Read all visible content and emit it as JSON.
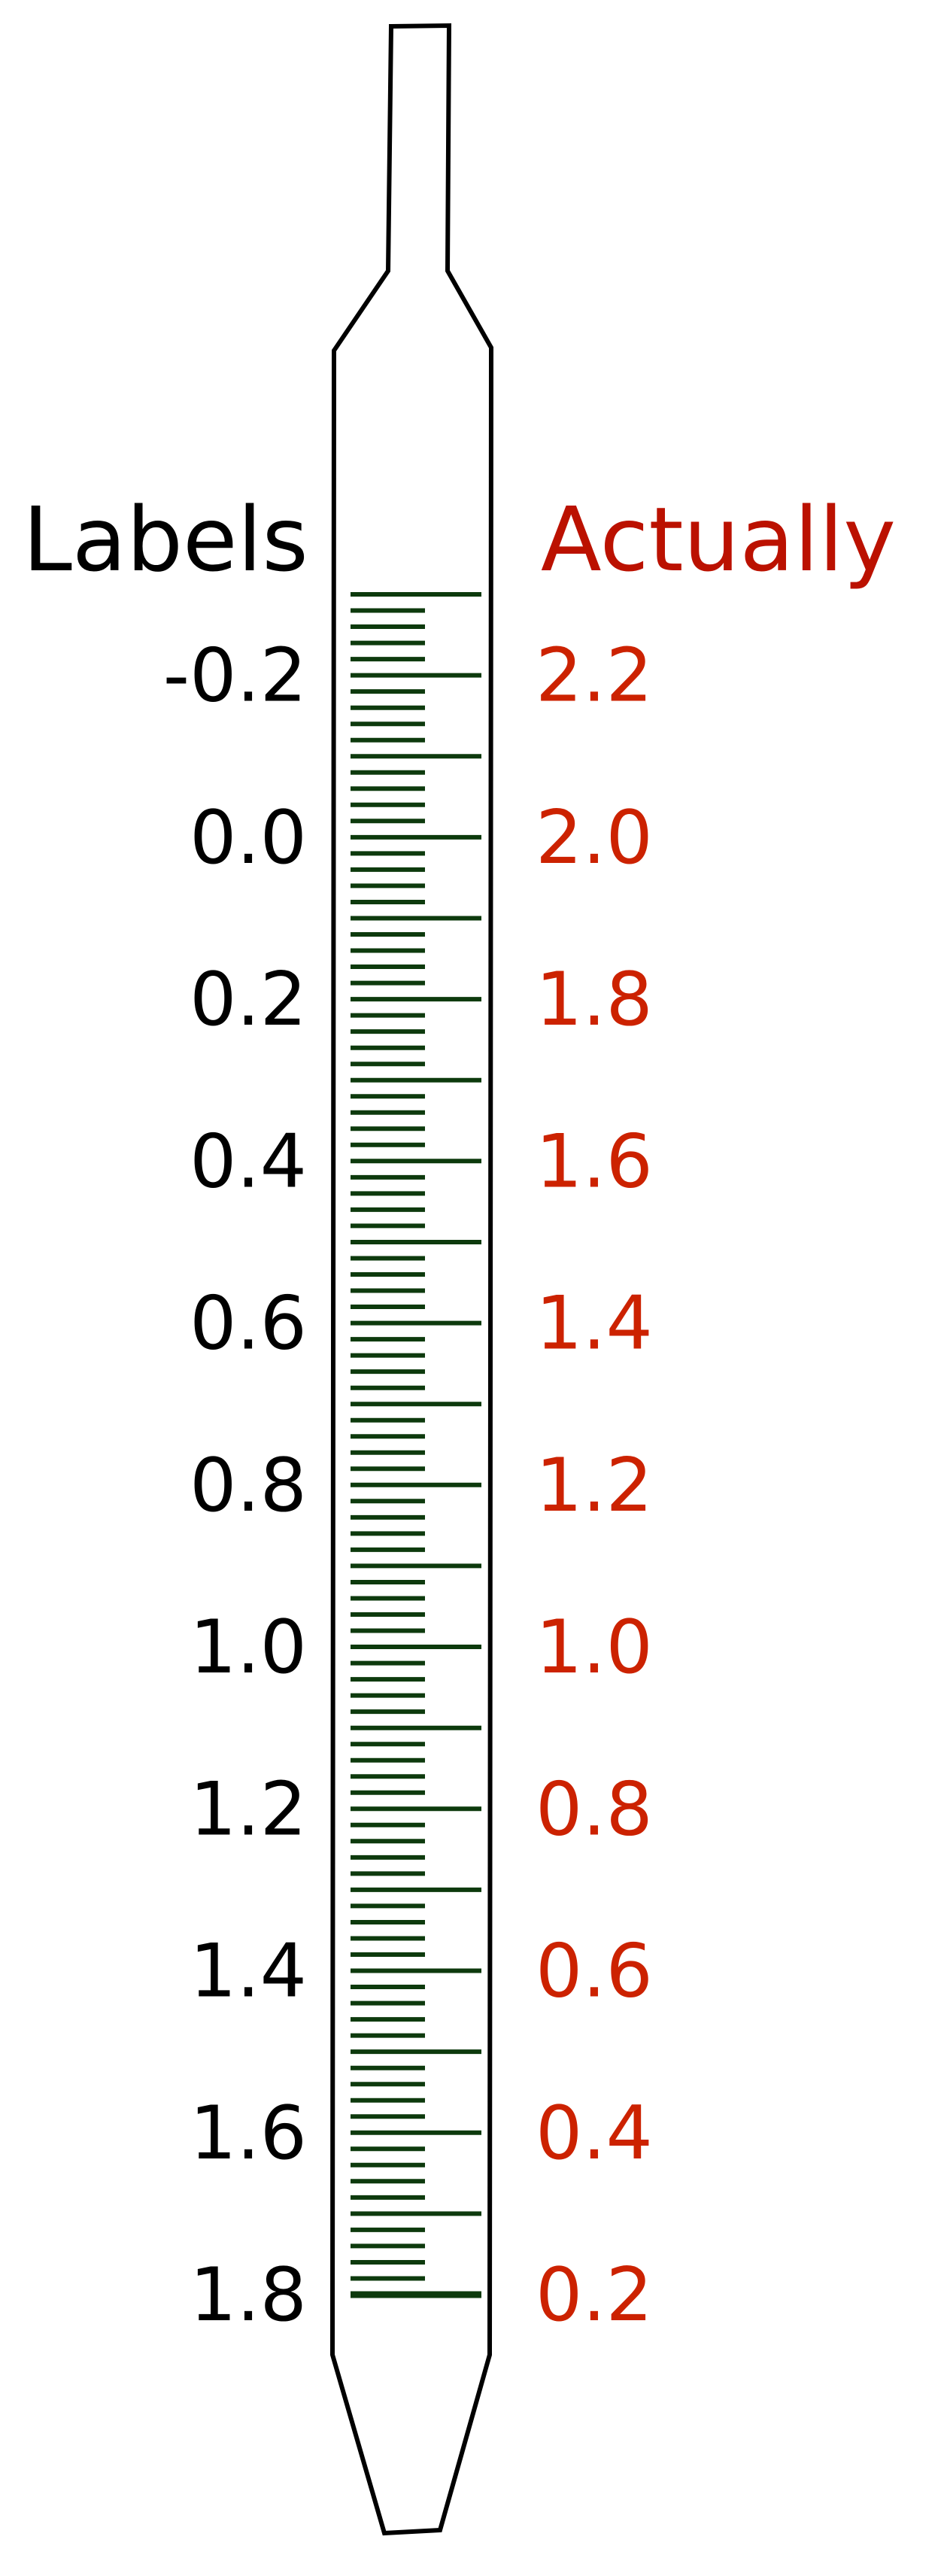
{
  "headers": {
    "left": "Labels",
    "right": "Actually"
  },
  "colors": {
    "left_text": "#000000",
    "right_text": "#cc2200",
    "right_header": "#bb1100",
    "outline": "#000000",
    "graduation": "#0d3a0d"
  },
  "scale": [
    {
      "label": "-0.2",
      "actual": "2.2"
    },
    {
      "label": "0.0",
      "actual": "2.0"
    },
    {
      "label": "0.2",
      "actual": "1.8"
    },
    {
      "label": "0.4",
      "actual": "1.6"
    },
    {
      "label": "0.6",
      "actual": "1.4"
    },
    {
      "label": "0.8",
      "actual": "1.2"
    },
    {
      "label": "1.0",
      "actual": "1.0"
    },
    {
      "label": "1.2",
      "actual": "0.8"
    },
    {
      "label": "1.4",
      "actual": "0.6"
    },
    {
      "label": "1.6",
      "actual": "0.4"
    },
    {
      "label": "1.8",
      "actual": "0.2"
    }
  ]
}
